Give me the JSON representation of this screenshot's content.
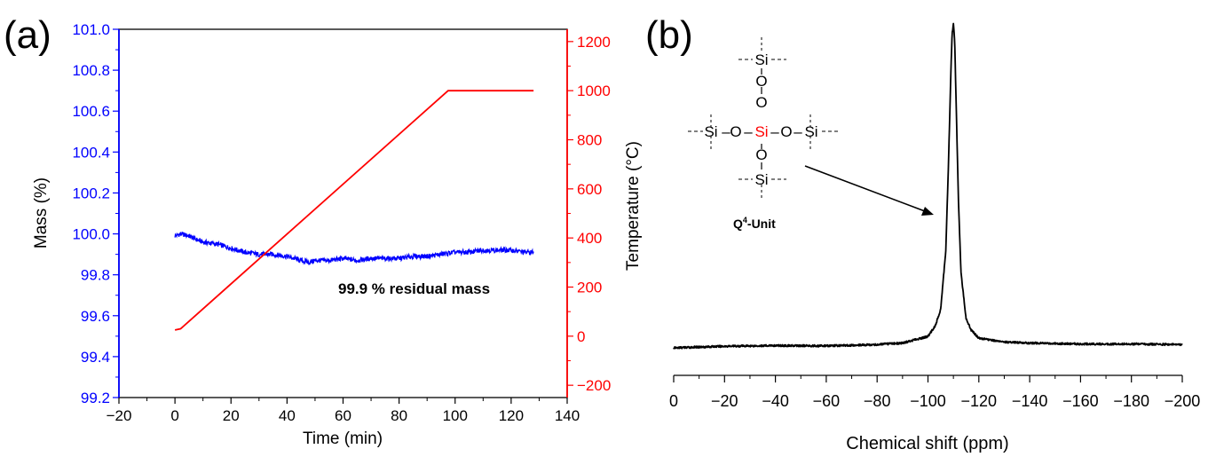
{
  "panels": {
    "a": {
      "label": "(a)",
      "annotation": "99.9 % residual mass"
    },
    "b": {
      "label": "(b)",
      "structure": {
        "center_atom": "Si",
        "atoms": {
          "silicon": "Si",
          "oxygen": "O",
          "bond": "–"
        },
        "unit_main": "Q",
        "unit_superscript": "4",
        "unit_suffix": "-Unit"
      }
    }
  },
  "colors": {
    "mass": "#0000ff",
    "temperature": "#ff0000",
    "nmr": "#000000",
    "center_atom": "#ff0000"
  },
  "chart_data": [
    {
      "type": "line",
      "xlabel": "Time (min)",
      "ylabel": "Mass (%)",
      "y2label": "Temperature (°C)",
      "xlim": [
        -20,
        140
      ],
      "ylim": [
        99.2,
        101.0
      ],
      "y2lim": [
        -250,
        1250
      ],
      "xticks": [
        -20,
        0,
        20,
        40,
        60,
        80,
        100,
        120,
        140
      ],
      "yticks": [
        "99.2",
        "99.4",
        "99.6",
        "99.8",
        "100.0",
        "100.2",
        "100.4",
        "100.6",
        "100.8",
        "101.0"
      ],
      "y2ticks": [
        -200,
        0,
        200,
        400,
        600,
        800,
        1000,
        1200
      ],
      "grid": false,
      "series": [
        {
          "axis": "left",
          "noisy": true,
          "x": [
            0,
            2,
            5,
            8,
            10,
            15,
            20,
            25,
            30,
            35,
            40,
            45,
            48,
            50,
            55,
            60,
            65,
            70,
            75,
            80,
            85,
            90,
            95,
            100,
            105,
            110,
            115,
            120,
            125,
            128
          ],
          "values": [
            99.99,
            100.0,
            99.99,
            99.97,
            99.96,
            99.95,
            99.93,
            99.91,
            99.9,
            99.9,
            99.89,
            99.87,
            99.86,
            99.87,
            99.87,
            99.88,
            99.87,
            99.88,
            99.88,
            99.88,
            99.89,
            99.89,
            99.9,
            99.91,
            99.91,
            99.92,
            99.92,
            99.92,
            99.91,
            99.91
          ]
        },
        {
          "axis": "right",
          "x": [
            0,
            2,
            97.5,
            128
          ],
          "values": [
            25,
            30,
            1000,
            1000
          ]
        }
      ]
    },
    {
      "type": "line",
      "xlabel": "Chemical shift (ppm)",
      "ylabel": "",
      "xlim": [
        0,
        -200
      ],
      "ylim": [
        0,
        1.1
      ],
      "xticks": [
        0,
        -20,
        -40,
        -60,
        -80,
        -100,
        -120,
        -140,
        -160,
        -180,
        -200
      ],
      "grid": false,
      "series": [
        {
          "noisy": true,
          "x": [
            0,
            -20,
            -40,
            -60,
            -80,
            -90,
            -100,
            -103,
            -105,
            -107,
            -108,
            -109,
            -109.5,
            -110,
            -110.5,
            -111,
            -112,
            -113,
            -115,
            -117,
            -120,
            -130,
            -140,
            -160,
            -180,
            -200
          ],
          "values": [
            0.0,
            0.005,
            0.007,
            0.006,
            0.01,
            0.015,
            0.035,
            0.07,
            0.12,
            0.3,
            0.55,
            0.85,
            0.97,
            1.0,
            0.95,
            0.78,
            0.45,
            0.23,
            0.09,
            0.055,
            0.03,
            0.018,
            0.015,
            0.012,
            0.012,
            0.01
          ]
        }
      ]
    }
  ]
}
